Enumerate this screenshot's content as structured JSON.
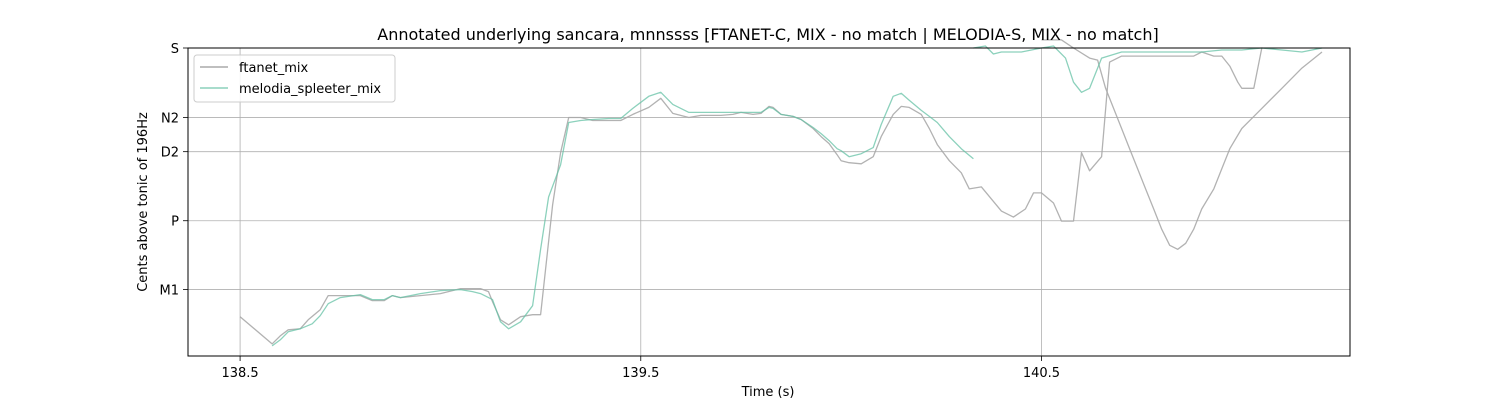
{
  "chart_data": {
    "type": "line",
    "title": "Annotated underlying sancara, mnnssss [FTANET-C, MIX - no match | MELODIA-S, MIX - no match]",
    "xlabel": "Time (s)",
    "ylabel": "Cents above tonic of 196Hz",
    "xlim": [
      138.37,
      141.27
    ],
    "ylim": [
      -330,
      1200
    ],
    "grid": true,
    "legend_position": "top-left",
    "x_ticks": [
      {
        "value": 138.5,
        "label": "138.5"
      },
      {
        "value": 139.5,
        "label": "139.5"
      },
      {
        "value": 140.5,
        "label": "140.5"
      }
    ],
    "y_ticks": [
      {
        "value": 0,
        "label": "M1"
      },
      {
        "value": 342,
        "label": "P"
      },
      {
        "value": 685,
        "label": "D2"
      },
      {
        "value": 855,
        "label": "N2"
      },
      {
        "value": 1200,
        "label": "S"
      }
    ],
    "series": [
      {
        "name": "ftanet_mix",
        "color": "#aaaaaa",
        "segments": [
          [
            [
              138.5,
              -135
            ],
            [
              138.58,
              -270
            ],
            [
              138.6,
              -230
            ],
            [
              138.62,
              -200
            ],
            [
              138.65,
              -195
            ],
            [
              138.67,
              -150
            ],
            [
              138.7,
              -100
            ],
            [
              138.72,
              -30
            ],
            [
              138.75,
              -30
            ],
            [
              138.8,
              -30
            ],
            [
              138.83,
              -55
            ],
            [
              138.86,
              -55
            ],
            [
              138.88,
              -30
            ],
            [
              138.9,
              -40
            ],
            [
              138.95,
              -30
            ],
            [
              139.0,
              -20
            ],
            [
              139.05,
              5
            ],
            [
              139.1,
              5
            ],
            [
              139.12,
              -10
            ],
            [
              139.13,
              -60
            ],
            [
              139.15,
              -150
            ],
            [
              139.17,
              -175
            ],
            [
              139.2,
              -135
            ],
            [
              139.23,
              -125
            ],
            [
              139.25,
              -125
            ],
            [
              139.28,
              420
            ],
            [
              139.3,
              680
            ],
            [
              139.32,
              855
            ],
            [
              139.35,
              855
            ],
            [
              139.38,
              840
            ],
            [
              139.42,
              840
            ],
            [
              139.45,
              840
            ],
            [
              139.48,
              870
            ],
            [
              139.52,
              905
            ],
            [
              139.55,
              950
            ],
            [
              139.58,
              875
            ],
            [
              139.62,
              855
            ],
            [
              139.65,
              865
            ],
            [
              139.7,
              865
            ],
            [
              139.73,
              870
            ],
            [
              139.75,
              880
            ],
            [
              139.78,
              870
            ],
            [
              139.8,
              875
            ],
            [
              139.82,
              910
            ],
            [
              139.83,
              905
            ],
            [
              139.85,
              870
            ],
            [
              139.88,
              860
            ],
            [
              139.9,
              845
            ],
            [
              139.93,
              800
            ],
            [
              139.95,
              760
            ],
            [
              139.97,
              725
            ],
            [
              139.99,
              670
            ],
            [
              140.0,
              640
            ],
            [
              140.02,
              630
            ],
            [
              140.05,
              625
            ],
            [
              140.08,
              660
            ],
            [
              140.1,
              760
            ],
            [
              140.13,
              870
            ],
            [
              140.15,
              910
            ],
            [
              140.17,
              905
            ],
            [
              140.2,
              870
            ],
            [
              140.22,
              800
            ],
            [
              140.24,
              720
            ],
            [
              140.27,
              640
            ],
            [
              140.3,
              580
            ],
            [
              140.32,
              500
            ],
            [
              140.35,
              510
            ],
            [
              140.4,
              390
            ],
            [
              140.43,
              360
            ],
            [
              140.46,
              400
            ],
            [
              140.48,
              480
            ],
            [
              140.5,
              480
            ],
            [
              140.53,
              430
            ],
            [
              140.55,
              340
            ],
            [
              140.58,
              340
            ],
            [
              140.6,
              680
            ],
            [
              140.62,
              590
            ],
            [
              140.65,
              660
            ],
            [
              140.67,
              1130
            ],
            [
              140.7,
              1160
            ],
            [
              140.75,
              1160
            ],
            [
              140.8,
              1160
            ],
            [
              140.85,
              1160
            ],
            [
              140.88,
              1160
            ],
            [
              140.9,
              1180
            ],
            [
              140.93,
              1160
            ],
            [
              140.95,
              1160
            ],
            [
              140.97,
              1110
            ],
            [
              140.99,
              1030
            ],
            [
              141.0,
              1000
            ],
            [
              141.03,
              1000
            ],
            [
              141.05,
              1200
            ]
          ],
          [
            [
              140.5,
              1240
            ],
            [
              140.55,
              1240
            ],
            [
              140.58,
              1200
            ],
            [
              140.62,
              1150
            ],
            [
              140.64,
              1140
            ],
            [
              140.66,
              1000
            ],
            [
              140.68,
              900
            ],
            [
              140.7,
              800
            ],
            [
              140.72,
              700
            ],
            [
              140.74,
              600
            ],
            [
              140.76,
              500
            ],
            [
              140.78,
              400
            ],
            [
              140.8,
              300
            ],
            [
              140.82,
              220
            ],
            [
              140.84,
              200
            ],
            [
              140.86,
              230
            ],
            [
              140.88,
              300
            ],
            [
              140.9,
              400
            ],
            [
              140.93,
              500
            ],
            [
              140.95,
              600
            ],
            [
              140.97,
              700
            ],
            [
              141.0,
              800
            ],
            [
              141.05,
              900
            ],
            [
              141.1,
              1000
            ],
            [
              141.15,
              1100
            ],
            [
              141.2,
              1180
            ]
          ]
        ]
      },
      {
        "name": "melodia_spleeter_mix",
        "color": "#66c2a5",
        "segments": [
          [
            [
              138.58,
              -280
            ],
            [
              138.6,
              -250
            ],
            [
              138.62,
              -210
            ],
            [
              138.65,
              -195
            ],
            [
              138.68,
              -170
            ],
            [
              138.7,
              -130
            ],
            [
              138.72,
              -70
            ],
            [
              138.75,
              -40
            ],
            [
              138.8,
              -25
            ],
            [
              138.83,
              -50
            ],
            [
              138.86,
              -50
            ],
            [
              138.88,
              -30
            ],
            [
              138.9,
              -40
            ],
            [
              138.95,
              -20
            ],
            [
              139.0,
              -5
            ],
            [
              139.05,
              0
            ],
            [
              139.08,
              -10
            ],
            [
              139.1,
              -20
            ],
            [
              139.13,
              -50
            ],
            [
              139.15,
              -160
            ],
            [
              139.17,
              -195
            ],
            [
              139.2,
              -160
            ],
            [
              139.23,
              -80
            ],
            [
              139.25,
              200
            ],
            [
              139.27,
              460
            ],
            [
              139.3,
              620
            ],
            [
              139.32,
              830
            ],
            [
              139.35,
              840
            ],
            [
              139.38,
              845
            ],
            [
              139.42,
              850
            ],
            [
              139.45,
              850
            ],
            [
              139.48,
              900
            ],
            [
              139.52,
              960
            ],
            [
              139.55,
              980
            ],
            [
              139.58,
              920
            ],
            [
              139.62,
              880
            ],
            [
              139.65,
              880
            ],
            [
              139.7,
              880
            ],
            [
              139.73,
              880
            ],
            [
              139.75,
              880
            ],
            [
              139.78,
              880
            ],
            [
              139.8,
              880
            ],
            [
              139.82,
              905
            ],
            [
              139.83,
              900
            ],
            [
              139.85,
              870
            ],
            [
              139.88,
              860
            ],
            [
              139.9,
              845
            ],
            [
              139.93,
              805
            ],
            [
              139.95,
              775
            ],
            [
              139.97,
              740
            ],
            [
              139.99,
              700
            ],
            [
              140.0,
              690
            ],
            [
              140.02,
              660
            ],
            [
              140.05,
              675
            ],
            [
              140.08,
              705
            ],
            [
              140.1,
              820
            ],
            [
              140.13,
              960
            ],
            [
              140.15,
              975
            ],
            [
              140.17,
              940
            ],
            [
              140.2,
              890
            ],
            [
              140.22,
              860
            ],
            [
              140.24,
              830
            ],
            [
              140.27,
              760
            ],
            [
              140.3,
              700
            ],
            [
              140.33,
              650
            ]
          ],
          [
            [
              140.33,
              1200
            ],
            [
              140.36,
              1210
            ],
            [
              140.38,
              1170
            ],
            [
              140.4,
              1180
            ],
            [
              140.45,
              1180
            ],
            [
              140.5,
              1200
            ],
            [
              140.53,
              1210
            ],
            [
              140.56,
              1150
            ],
            [
              140.58,
              1030
            ],
            [
              140.6,
              980
            ],
            [
              140.62,
              1000
            ],
            [
              140.65,
              1150
            ],
            [
              140.7,
              1180
            ],
            [
              140.75,
              1180
            ],
            [
              140.8,
              1180
            ],
            [
              140.85,
              1180
            ],
            [
              140.9,
              1180
            ],
            [
              140.95,
              1190
            ],
            [
              141.0,
              1190
            ],
            [
              141.05,
              1200
            ],
            [
              141.1,
              1190
            ],
            [
              141.15,
              1180
            ],
            [
              141.2,
              1200
            ]
          ]
        ]
      }
    ]
  }
}
